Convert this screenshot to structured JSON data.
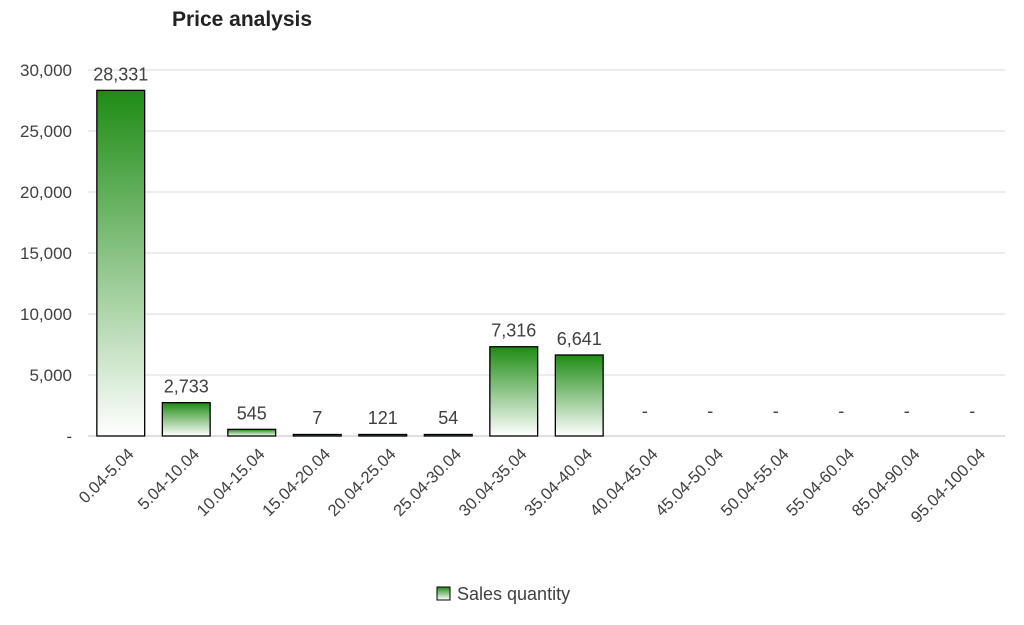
{
  "chart_data": {
    "type": "bar",
    "title": "Price analysis",
    "xlabel": "",
    "ylabel": "",
    "ylim": [
      0,
      30000
    ],
    "y_ticks": [
      {
        "value": 0,
        "label": "-"
      },
      {
        "value": 5000,
        "label": "5,000"
      },
      {
        "value": 10000,
        "label": "10,000"
      },
      {
        "value": 15000,
        "label": "15,000"
      },
      {
        "value": 20000,
        "label": "20,000"
      },
      {
        "value": 25000,
        "label": "25,000"
      },
      {
        "value": 30000,
        "label": "30,000"
      }
    ],
    "grid": true,
    "legend_position": "bottom",
    "categories": [
      "0.04-5.04",
      "5.04-10.04",
      "10.04-15.04",
      "15.04-20.04",
      "20.04-25.04",
      "25.04-30.04",
      "30.04-35.04",
      "35.04-40.04",
      "40.04-45.04",
      "45.04-50.04",
      "50.04-55.04",
      "55.04-60.04",
      "85.04-90.04",
      "95.04-100.04"
    ],
    "series": [
      {
        "name": "Sales quantity",
        "values": [
          28331,
          2733,
          545,
          7,
          121,
          54,
          7316,
          6641,
          0,
          0,
          0,
          0,
          0,
          0
        ],
        "data_labels": [
          "28,331",
          "2,733",
          "545",
          "7",
          "121",
          "54",
          "7,316",
          "6,641",
          "-",
          "-",
          "-",
          "-",
          "-",
          "-"
        ]
      }
    ],
    "colors": {
      "bar_top": "#1e8c14",
      "bar_bottom": "#ffffff",
      "bar_border": "#000000",
      "grid": "#d9d9d9",
      "text": "#404040"
    }
  }
}
